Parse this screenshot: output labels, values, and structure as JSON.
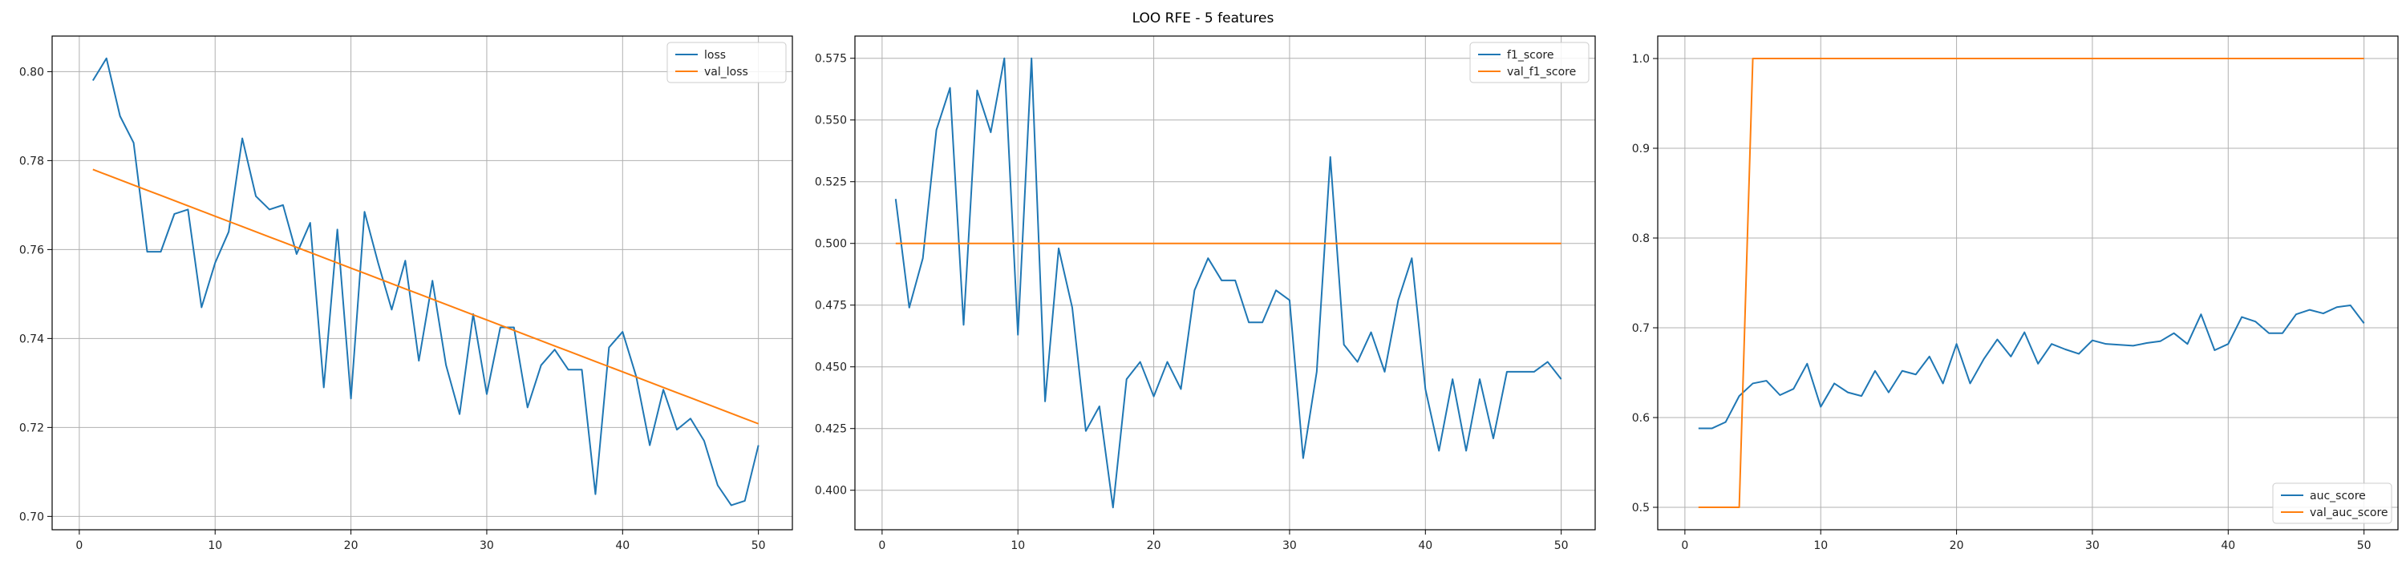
{
  "figure": {
    "suptitle": "LOO RFE - 5 features"
  },
  "colors": {
    "series1": "#1f77b4",
    "series2": "#ff7f0e",
    "grid": "#b0b0b0",
    "axis": "#000000"
  },
  "chart_data": [
    {
      "type": "line",
      "title": "",
      "xlabel": "",
      "ylabel": "",
      "grid": true,
      "legend_position": "top-right",
      "xlim": [
        -2,
        52.5
      ],
      "ylim": [
        0.697,
        0.808
      ],
      "xticks": [
        0,
        10,
        20,
        30,
        40,
        50
      ],
      "yticks": [
        0.7,
        0.72,
        0.74,
        0.76,
        0.78,
        0.8
      ],
      "ytick_labels": [
        "0.70",
        "0.72",
        "0.74",
        "0.76",
        "0.78",
        "0.80"
      ],
      "x": [
        1,
        2,
        3,
        4,
        5,
        6,
        7,
        8,
        9,
        10,
        11,
        12,
        13,
        14,
        15,
        16,
        17,
        18,
        19,
        20,
        21,
        22,
        23,
        24,
        25,
        26,
        27,
        28,
        29,
        30,
        31,
        32,
        33,
        34,
        35,
        36,
        37,
        38,
        39,
        40,
        41,
        42,
        43,
        44,
        45,
        46,
        47,
        48,
        49,
        50
      ],
      "series": [
        {
          "name": "loss",
          "values": [
            0.798,
            0.803,
            0.79,
            0.784,
            0.7595,
            0.7595,
            0.768,
            0.769,
            0.747,
            0.757,
            0.764,
            0.785,
            0.772,
            0.769,
            0.77,
            0.759,
            0.766,
            0.729,
            0.7645,
            0.7265,
            0.7685,
            0.757,
            0.7465,
            0.7575,
            0.735,
            0.753,
            0.734,
            0.723,
            0.7455,
            0.7275,
            0.7425,
            0.7425,
            0.7245,
            0.734,
            0.7375,
            0.733,
            0.733,
            0.705,
            0.738,
            0.7415,
            0.7315,
            0.716,
            0.7285,
            0.7195,
            0.722,
            0.717,
            0.707,
            0.7025,
            0.7035,
            0.716
          ]
        },
        {
          "name": "val_loss",
          "values": [
            0.778,
            0.77683,
            0.77567,
            0.7745,
            0.77333,
            0.77217,
            0.771,
            0.76983,
            0.76867,
            0.7675,
            0.76633,
            0.76517,
            0.764,
            0.76283,
            0.76167,
            0.7605,
            0.75933,
            0.75817,
            0.757,
            0.75583,
            0.75467,
            0.7535,
            0.75233,
            0.75117,
            0.75,
            0.74883,
            0.74767,
            0.7465,
            0.74533,
            0.74417,
            0.743,
            0.74183,
            0.74067,
            0.7395,
            0.73833,
            0.73717,
            0.736,
            0.73483,
            0.73367,
            0.7325,
            0.73133,
            0.73017,
            0.729,
            0.72783,
            0.72667,
            0.7255,
            0.72433,
            0.72317,
            0.722,
            0.72083
          ]
        }
      ]
    },
    {
      "type": "line",
      "title": "",
      "xlabel": "",
      "ylabel": "",
      "grid": true,
      "legend_position": "top-right",
      "xlim": [
        -2,
        52.5
      ],
      "ylim": [
        0.384,
        0.584
      ],
      "xticks": [
        0,
        10,
        20,
        30,
        40,
        50
      ],
      "yticks": [
        0.4,
        0.425,
        0.45,
        0.475,
        0.5,
        0.525,
        0.55,
        0.575
      ],
      "ytick_labels": [
        "0.400",
        "0.425",
        "0.450",
        "0.475",
        "0.500",
        "0.525",
        "0.550",
        "0.575"
      ],
      "x": [
        1,
        2,
        3,
        4,
        5,
        6,
        7,
        8,
        9,
        10,
        11,
        12,
        13,
        14,
        15,
        16,
        17,
        18,
        19,
        20,
        21,
        22,
        23,
        24,
        25,
        26,
        27,
        28,
        29,
        30,
        31,
        32,
        33,
        34,
        35,
        36,
        37,
        38,
        39,
        40,
        41,
        42,
        43,
        44,
        45,
        46,
        47,
        48,
        49,
        50
      ],
      "series": [
        {
          "name": "f1_score",
          "values": [
            0.518,
            0.474,
            0.494,
            0.546,
            0.563,
            0.467,
            0.562,
            0.545,
            0.575,
            0.463,
            0.575,
            0.436,
            0.498,
            0.474,
            0.424,
            0.434,
            0.393,
            0.445,
            0.452,
            0.438,
            0.452,
            0.441,
            0.481,
            0.494,
            0.485,
            0.485,
            0.468,
            0.468,
            0.481,
            0.477,
            0.413,
            0.448,
            0.535,
            0.459,
            0.452,
            0.464,
            0.448,
            0.477,
            0.494,
            0.441,
            0.416,
            0.445,
            0.416,
            0.445,
            0.421,
            0.448,
            0.448,
            0.448,
            0.452,
            0.445
          ]
        },
        {
          "name": "val_f1_score",
          "values": [
            0.5,
            0.5,
            0.5,
            0.5,
            0.5,
            0.5,
            0.5,
            0.5,
            0.5,
            0.5,
            0.5,
            0.5,
            0.5,
            0.5,
            0.5,
            0.5,
            0.5,
            0.5,
            0.5,
            0.5,
            0.5,
            0.5,
            0.5,
            0.5,
            0.5,
            0.5,
            0.5,
            0.5,
            0.5,
            0.5,
            0.5,
            0.5,
            0.5,
            0.5,
            0.5,
            0.5,
            0.5,
            0.5,
            0.5,
            0.5,
            0.5,
            0.5,
            0.5,
            0.5,
            0.5,
            0.5,
            0.5,
            0.5,
            0.5,
            0.5
          ]
        }
      ]
    },
    {
      "type": "line",
      "title": "",
      "xlabel": "",
      "ylabel": "",
      "grid": true,
      "legend_position": "bottom-right",
      "xlim": [
        -2,
        52.5
      ],
      "ylim": [
        0.475,
        1.025
      ],
      "xticks": [
        0,
        10,
        20,
        30,
        40,
        50
      ],
      "yticks": [
        0.5,
        0.6,
        0.7,
        0.8,
        0.9,
        1.0
      ],
      "ytick_labels": [
        "0.5",
        "0.6",
        "0.7",
        "0.8",
        "0.9",
        "1.0"
      ],
      "x": [
        1,
        2,
        3,
        4,
        5,
        6,
        7,
        8,
        9,
        10,
        11,
        12,
        13,
        14,
        15,
        16,
        17,
        18,
        19,
        20,
        21,
        22,
        23,
        24,
        25,
        26,
        27,
        28,
        29,
        30,
        31,
        32,
        33,
        34,
        35,
        36,
        37,
        38,
        39,
        40,
        41,
        42,
        43,
        44,
        45,
        46,
        47,
        48,
        49,
        50
      ],
      "series": [
        {
          "name": "auc_score",
          "values": [
            0.588,
            0.588,
            0.595,
            0.624,
            0.638,
            0.641,
            0.625,
            0.632,
            0.66,
            0.612,
            0.638,
            0.628,
            0.624,
            0.652,
            0.628,
            0.652,
            0.648,
            0.668,
            0.638,
            0.682,
            0.638,
            0.665,
            0.687,
            0.668,
            0.695,
            0.66,
            0.682,
            0.676,
            0.671,
            0.686,
            0.682,
            0.681,
            0.68,
            0.683,
            0.685,
            0.694,
            0.682,
            0.715,
            0.675,
            0.682,
            0.712,
            0.707,
            0.694,
            0.694,
            0.715,
            0.72,
            0.716,
            0.723,
            0.725,
            0.705
          ]
        },
        {
          "name": "val_auc_score",
          "values": [
            0.5,
            0.5,
            0.5,
            0.5,
            1.0,
            1.0,
            1.0,
            1.0,
            1.0,
            1.0,
            1.0,
            1.0,
            1.0,
            1.0,
            1.0,
            1.0,
            1.0,
            1.0,
            1.0,
            1.0,
            1.0,
            1.0,
            1.0,
            1.0,
            1.0,
            1.0,
            1.0,
            1.0,
            1.0,
            1.0,
            1.0,
            1.0,
            1.0,
            1.0,
            1.0,
            1.0,
            1.0,
            1.0,
            1.0,
            1.0,
            1.0,
            1.0,
            1.0,
            1.0,
            1.0,
            1.0,
            1.0,
            1.0,
            1.0,
            1.0
          ]
        }
      ]
    }
  ]
}
